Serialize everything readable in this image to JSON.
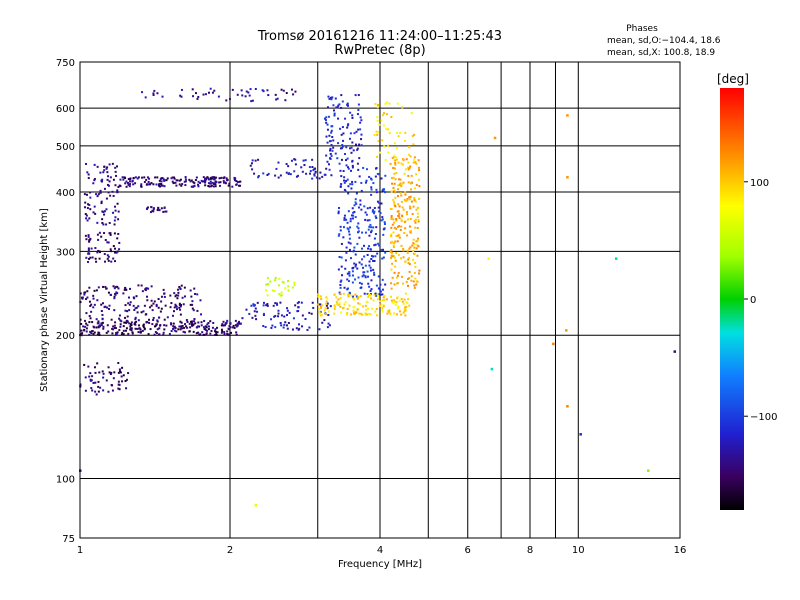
{
  "chart_data": {
    "type": "scatter",
    "title": "Tromsø 20161216 11:24:00–11:25:43",
    "subtitle": "RwPretec (8p)",
    "phases": {
      "title": "Phases",
      "line_o": "mean, sd,O:−104.4, 18.6",
      "line_x": "mean, sd,X: 100.8, 18.9"
    },
    "xlabel": "Frequency [MHz]",
    "ylabel": "Stationary phase Virtual Height [km]",
    "x_scale": "log",
    "y_scale": "log",
    "xlim": [
      1,
      16
    ],
    "ylim": [
      75,
      750
    ],
    "x_ticks": [
      1,
      2,
      4,
      6,
      8,
      10,
      16
    ],
    "x_tick_labels": [
      "1",
      "2",
      "4",
      "6",
      "8",
      "10",
      "16"
    ],
    "y_ticks": [
      75,
      100,
      200,
      300,
      400,
      500,
      600,
      750
    ],
    "y_tick_labels": [
      "75",
      "100",
      "200",
      "300",
      "400",
      "500",
      "600",
      "750"
    ],
    "x_minor_grid": [
      3,
      5,
      7,
      9
    ],
    "grid": true,
    "colorbar": {
      "label": "[deg]",
      "range": [
        -180,
        180
      ],
      "tick_values": [
        100,
        0,
        -100
      ],
      "tick_labels": [
        "100",
        "0",
        "−100"
      ]
    },
    "colors": {
      "o_mode": "#3a3acc",
      "x_mode": "#f0a020"
    },
    "traces": [
      {
        "name": "",
        "phase": -150,
        "x_range": [
          1.0,
          1.25
        ],
        "y_range": [
          150,
          175
        ],
        "n": 60
      },
      {
        "name": "",
        "phase": -150,
        "x_range": [
          1.0,
          2.1
        ],
        "y_range": [
          200,
          215
        ],
        "n": 260
      },
      {
        "name": "",
        "phase": -145,
        "x_range": [
          1.0,
          1.75
        ],
        "y_range": [
          215,
          255
        ],
        "n": 180
      },
      {
        "name": "",
        "phase": -145,
        "x_range": [
          1.02,
          1.2
        ],
        "y_range": [
          285,
          330
        ],
        "n": 60
      },
      {
        "name": "",
        "phase": -140,
        "x_range": [
          1.02,
          1.2
        ],
        "y_range": [
          340,
          460
        ],
        "n": 90
      },
      {
        "name": "",
        "phase": -145,
        "x_range": [
          1.2,
          2.1
        ],
        "y_range": [
          410,
          430
        ],
        "n": 170
      },
      {
        "name": "",
        "phase": -140,
        "x_range": [
          1.35,
          1.5
        ],
        "y_range": [
          362,
          372
        ],
        "n": 20
      },
      {
        "name": "",
        "phase": -135,
        "x_range": [
          1.3,
          2.75
        ],
        "y_range": [
          620,
          660
        ],
        "n": 50
      },
      {
        "name": "",
        "phase": -120,
        "x_range": [
          2.1,
          3.2
        ],
        "y_range": [
          205,
          235
        ],
        "n": 90
      },
      {
        "name": "",
        "phase": -120,
        "x_range": [
          2.2,
          3.2
        ],
        "y_range": [
          425,
          470
        ],
        "n": 60
      },
      {
        "name": "",
        "phase": -115,
        "x_range": [
          3.1,
          3.7
        ],
        "y_range": [
          450,
          640
        ],
        "n": 110
      },
      {
        "name": "",
        "phase": -105,
        "x_range": [
          3.3,
          4.1
        ],
        "y_range": [
          240,
          450
        ],
        "n": 260
      },
      {
        "name": "",
        "phase": 95,
        "x_range": [
          3.0,
          4.6
        ],
        "y_range": [
          220,
          245
        ],
        "n": 150
      },
      {
        "name": "",
        "phase": 110,
        "x_range": [
          4.2,
          4.8
        ],
        "y_range": [
          250,
          480
        ],
        "n": 240
      },
      {
        "name": "",
        "phase": 90,
        "x_range": [
          3.9,
          4.7
        ],
        "y_range": [
          460,
          620
        ],
        "n": 50
      },
      {
        "name": "",
        "phase": 55,
        "x_range": [
          2.35,
          2.7
        ],
        "y_range": [
          240,
          265
        ],
        "n": 25
      }
    ],
    "isolated_points": [
      {
        "x": 6.8,
        "y": 520,
        "phase": 120
      },
      {
        "x": 6.6,
        "y": 290,
        "phase": 80
      },
      {
        "x": 6.7,
        "y": 170,
        "phase": -25
      },
      {
        "x": 9.5,
        "y": 580,
        "phase": 120
      },
      {
        "x": 9.5,
        "y": 430,
        "phase": 120
      },
      {
        "x": 9.45,
        "y": 205,
        "phase": 120
      },
      {
        "x": 8.9,
        "y": 192,
        "phase": 130
      },
      {
        "x": 9.5,
        "y": 142,
        "phase": 130
      },
      {
        "x": 10.1,
        "y": 124,
        "phase": -110
      },
      {
        "x": 11.9,
        "y": 290,
        "phase": -20
      },
      {
        "x": 13.8,
        "y": 104,
        "phase": 30
      },
      {
        "x": 15.6,
        "y": 185,
        "phase": -140
      },
      {
        "x": 2.25,
        "y": 88,
        "phase": 70
      },
      {
        "x": 1.0,
        "y": 104,
        "phase": -130
      }
    ]
  }
}
